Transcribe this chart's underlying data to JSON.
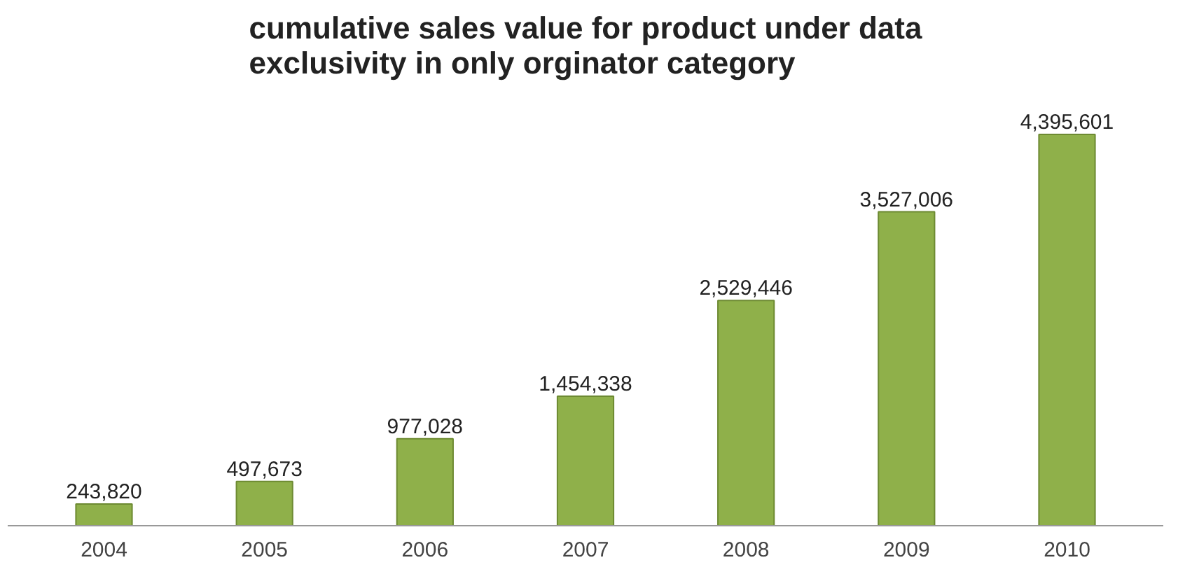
{
  "chart_data": {
    "type": "bar",
    "title": "cumulative sales value for product under data exclusivity in only orginator category",
    "categories": [
      "2004",
      "2005",
      "2006",
      "2007",
      "2008",
      "2009",
      "2010"
    ],
    "values": [
      243820,
      497673,
      977028,
      1454338,
      2529446,
      3527006,
      4395601
    ],
    "value_labels": [
      "243,820",
      "497,673",
      "977,028",
      "1,454,338",
      "2,529,446",
      "3,527,006",
      "4,395,601"
    ],
    "color": "#8fb04a",
    "grid": false
  }
}
